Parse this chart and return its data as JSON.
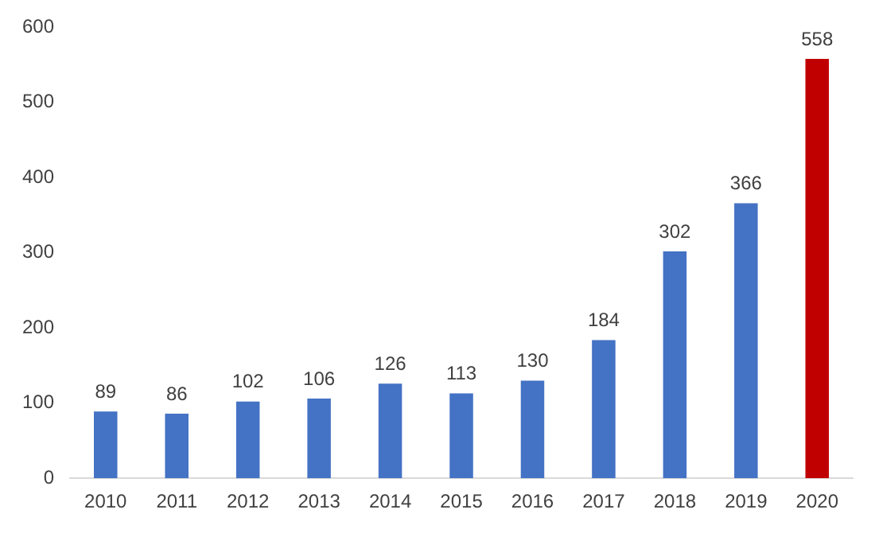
{
  "chart_data": {
    "type": "bar",
    "categories": [
      "2010",
      "2011",
      "2012",
      "2013",
      "2014",
      "2015",
      "2016",
      "2017",
      "2018",
      "2019",
      "2020"
    ],
    "values": [
      89,
      86,
      102,
      106,
      126,
      113,
      130,
      184,
      302,
      366,
      558
    ],
    "colors": [
      "#4472c4",
      "#4472c4",
      "#4472c4",
      "#4472c4",
      "#4472c4",
      "#4472c4",
      "#4472c4",
      "#4472c4",
      "#4472c4",
      "#4472c4",
      "#c00000"
    ],
    "ylim": [
      0,
      600
    ],
    "yticks": [
      0,
      100,
      200,
      300,
      400,
      500,
      600
    ],
    "grid": false,
    "data_labels": true,
    "legend": false
  }
}
